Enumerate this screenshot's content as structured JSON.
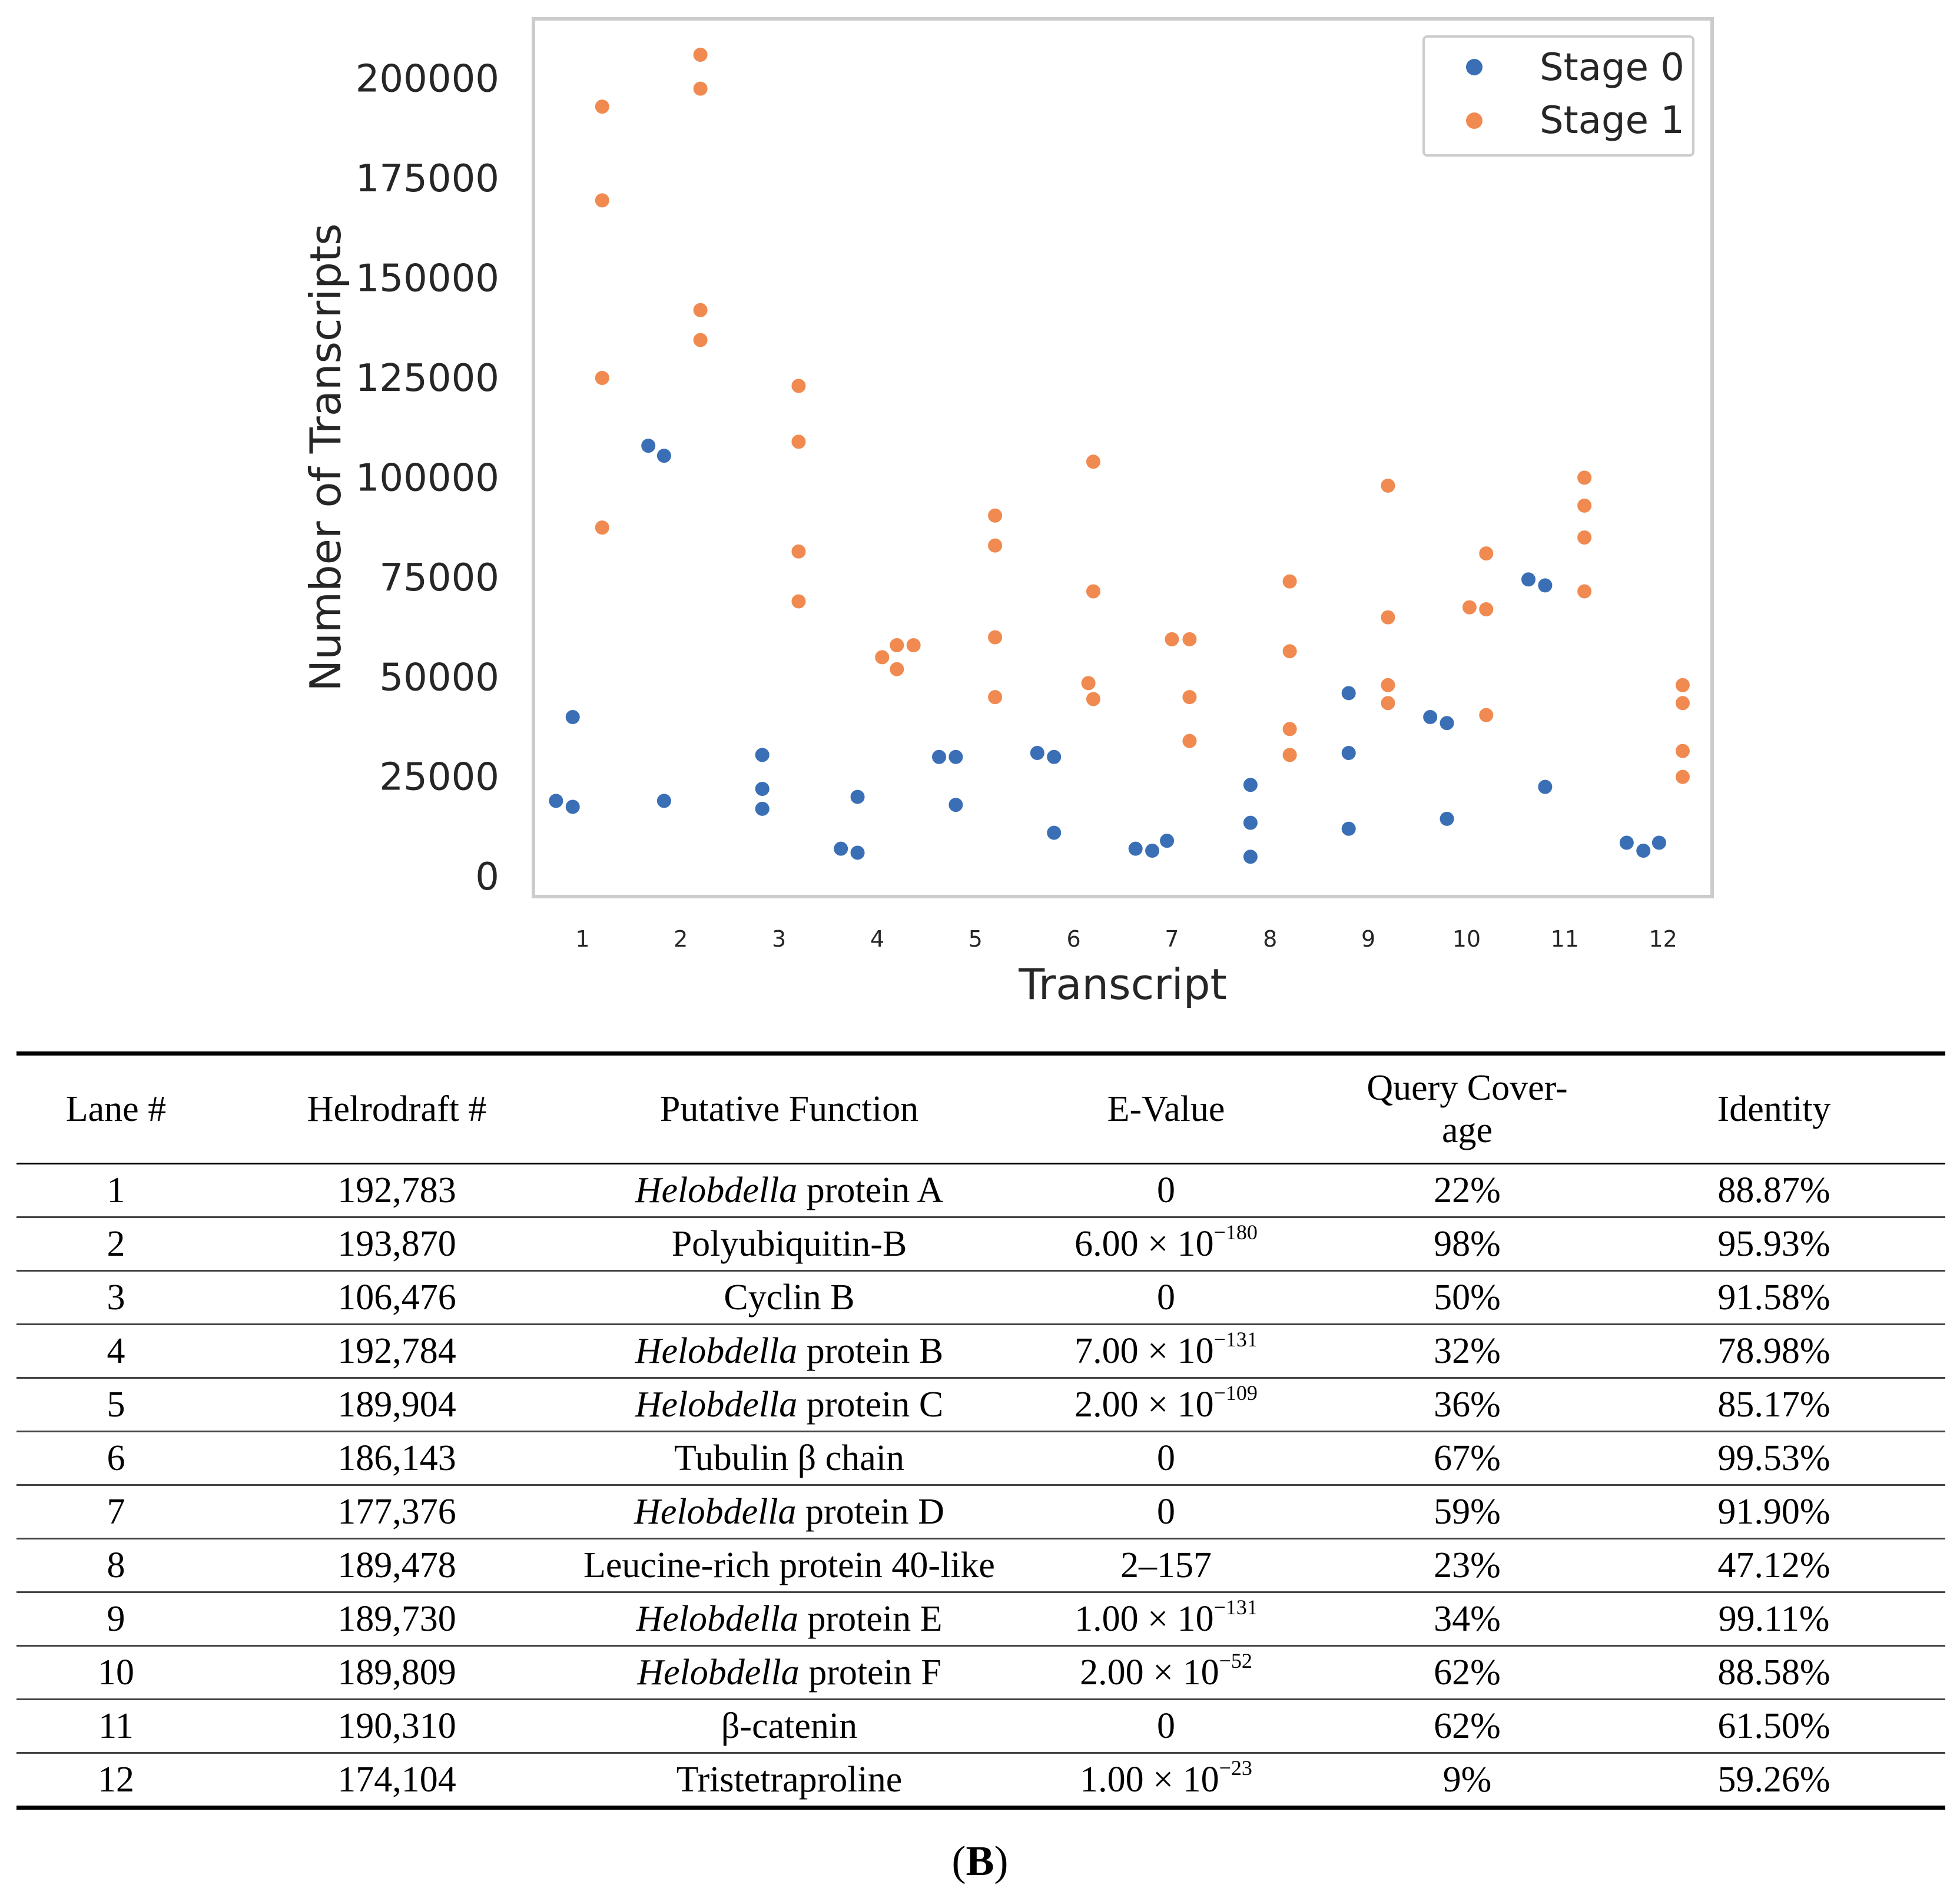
{
  "chart_data": {
    "type": "scatter",
    "xlabel": "Transcript",
    "ylabel": "Number of Transcripts",
    "ylim": [
      -5000,
      215000
    ],
    "xlim": [
      0.5,
      12.5
    ],
    "y_ticks": [
      0,
      25000,
      50000,
      75000,
      100000,
      125000,
      150000,
      175000,
      200000
    ],
    "y_tick_labels": [
      "0",
      "25000",
      "50000",
      "75000",
      "100000",
      "125000",
      "150000",
      "175000",
      "200000"
    ],
    "x_ticks": [
      1,
      2,
      3,
      4,
      5,
      6,
      7,
      8,
      9,
      10,
      11,
      12
    ],
    "x_tick_labels": [
      "1",
      "2",
      "3",
      "4",
      "5",
      "6",
      "7",
      "8",
      "9",
      "10",
      "11",
      "12"
    ],
    "grid": false,
    "legend_position": "top-right",
    "series": [
      {
        "name": "Stage 0",
        "color": "#3a6fb5",
        "points": [
          {
            "x": 0.73,
            "y": 19000
          },
          {
            "x": 0.9,
            "y": 17500
          },
          {
            "x": 0.9,
            "y": 40000
          },
          {
            "x": 1.67,
            "y": 108000
          },
          {
            "x": 1.83,
            "y": 105500
          },
          {
            "x": 1.83,
            "y": 19000
          },
          {
            "x": 2.83,
            "y": 30500
          },
          {
            "x": 2.83,
            "y": 22000
          },
          {
            "x": 2.83,
            "y": 17000
          },
          {
            "x": 3.63,
            "y": 7000
          },
          {
            "x": 3.8,
            "y": 20000
          },
          {
            "x": 3.8,
            "y": 6000
          },
          {
            "x": 4.63,
            "y": 30000
          },
          {
            "x": 4.8,
            "y": 30000
          },
          {
            "x": 4.8,
            "y": 18000
          },
          {
            "x": 5.63,
            "y": 31000
          },
          {
            "x": 5.8,
            "y": 30000
          },
          {
            "x": 5.8,
            "y": 11000
          },
          {
            "x": 6.63,
            "y": 7000
          },
          {
            "x": 6.8,
            "y": 6500
          },
          {
            "x": 6.95,
            "y": 9000
          },
          {
            "x": 7.8,
            "y": 23000
          },
          {
            "x": 7.8,
            "y": 13500
          },
          {
            "x": 7.8,
            "y": 5000
          },
          {
            "x": 8.8,
            "y": 46000
          },
          {
            "x": 8.8,
            "y": 31000
          },
          {
            "x": 8.8,
            "y": 12000
          },
          {
            "x": 9.63,
            "y": 40000
          },
          {
            "x": 9.8,
            "y": 38500
          },
          {
            "x": 9.8,
            "y": 14500
          },
          {
            "x": 10.63,
            "y": 74500
          },
          {
            "x": 10.8,
            "y": 73000
          },
          {
            "x": 10.8,
            "y": 22500
          },
          {
            "x": 11.63,
            "y": 8500
          },
          {
            "x": 11.8,
            "y": 6500
          },
          {
            "x": 11.96,
            "y": 8500
          }
        ]
      },
      {
        "name": "Stage 1",
        "color": "#f08a50",
        "points": [
          {
            "x": 1.2,
            "y": 193000
          },
          {
            "x": 1.2,
            "y": 169500
          },
          {
            "x": 1.2,
            "y": 125000
          },
          {
            "x": 1.2,
            "y": 87500
          },
          {
            "x": 2.2,
            "y": 206000
          },
          {
            "x": 2.2,
            "y": 197500
          },
          {
            "x": 2.2,
            "y": 142000
          },
          {
            "x": 2.2,
            "y": 134500
          },
          {
            "x": 3.2,
            "y": 123000
          },
          {
            "x": 3.2,
            "y": 109000
          },
          {
            "x": 3.2,
            "y": 81500
          },
          {
            "x": 3.2,
            "y": 69000
          },
          {
            "x": 4.05,
            "y": 55000
          },
          {
            "x": 4.2,
            "y": 58000
          },
          {
            "x": 4.37,
            "y": 58000
          },
          {
            "x": 4.2,
            "y": 52000
          },
          {
            "x": 5.2,
            "y": 90500
          },
          {
            "x": 5.2,
            "y": 83000
          },
          {
            "x": 5.2,
            "y": 60000
          },
          {
            "x": 5.2,
            "y": 45000
          },
          {
            "x": 6.2,
            "y": 104000
          },
          {
            "x": 6.2,
            "y": 71500
          },
          {
            "x": 6.15,
            "y": 48500
          },
          {
            "x": 6.2,
            "y": 44500
          },
          {
            "x": 7.0,
            "y": 59500
          },
          {
            "x": 7.18,
            "y": 59500
          },
          {
            "x": 7.18,
            "y": 45000
          },
          {
            "x": 7.18,
            "y": 34000
          },
          {
            "x": 8.2,
            "y": 74000
          },
          {
            "x": 8.2,
            "y": 56500
          },
          {
            "x": 8.2,
            "y": 37000
          },
          {
            "x": 8.2,
            "y": 30500
          },
          {
            "x": 9.2,
            "y": 98000
          },
          {
            "x": 9.2,
            "y": 65000
          },
          {
            "x": 9.2,
            "y": 48000
          },
          {
            "x": 9.2,
            "y": 43500
          },
          {
            "x": 10.03,
            "y": 67500
          },
          {
            "x": 10.2,
            "y": 81000
          },
          {
            "x": 10.2,
            "y": 67000
          },
          {
            "x": 10.2,
            "y": 40500
          },
          {
            "x": 11.2,
            "y": 100000
          },
          {
            "x": 11.2,
            "y": 93000
          },
          {
            "x": 11.2,
            "y": 85000
          },
          {
            "x": 11.2,
            "y": 71500
          },
          {
            "x": 12.2,
            "y": 48000
          },
          {
            "x": 12.2,
            "y": 43500
          },
          {
            "x": 12.2,
            "y": 31500
          },
          {
            "x": 12.2,
            "y": 25000
          }
        ]
      }
    ]
  },
  "table": {
    "headers": {
      "lane": "Lane #",
      "helrodraft": "Helrodraft #",
      "function": "Putative Function",
      "evalue": "E-Value",
      "coverage_line1": "Query Cover-",
      "coverage_line2": "age",
      "identity": "Identity"
    },
    "rows": [
      {
        "lane": "1",
        "helrodraft": "192,783",
        "function_italic": "Helobdella",
        "function_rest": " protein A",
        "evalue_base": "0",
        "evalue_exp": "",
        "coverage": "22%",
        "identity": "88.87%"
      },
      {
        "lane": "2",
        "helrodraft": "193,870",
        "function_italic": "",
        "function_rest": "Polyubiquitin-B",
        "evalue_base": "6.00 × 10",
        "evalue_exp": "−180",
        "coverage": "98%",
        "identity": "95.93%"
      },
      {
        "lane": "3",
        "helrodraft": "106,476",
        "function_italic": "",
        "function_rest": "Cyclin B",
        "evalue_base": "0",
        "evalue_exp": "",
        "coverage": "50%",
        "identity": "91.58%"
      },
      {
        "lane": "4",
        "helrodraft": "192,784",
        "function_italic": "Helobdella",
        "function_rest": " protein B",
        "evalue_base": "7.00 × 10",
        "evalue_exp": "−131",
        "coverage": "32%",
        "identity": "78.98%"
      },
      {
        "lane": "5",
        "helrodraft": "189,904",
        "function_italic": "Helobdella",
        "function_rest": " protein C",
        "evalue_base": "2.00 × 10",
        "evalue_exp": "−109",
        "coverage": "36%",
        "identity": "85.17%"
      },
      {
        "lane": "6",
        "helrodraft": "186,143",
        "function_italic": "",
        "function_rest": "Tubulin β chain",
        "evalue_base": "0",
        "evalue_exp": "",
        "coverage": "67%",
        "identity": "99.53%"
      },
      {
        "lane": "7",
        "helrodraft": "177,376",
        "function_italic": "Helobdella",
        "function_rest": " protein D",
        "evalue_base": "0",
        "evalue_exp": "",
        "coverage": "59%",
        "identity": "91.90%"
      },
      {
        "lane": "8",
        "helrodraft": "189,478",
        "function_italic": "",
        "function_rest": "Leucine-rich protein 40-like",
        "evalue_base": "2–157",
        "evalue_exp": "",
        "coverage": "23%",
        "identity": "47.12%"
      },
      {
        "lane": "9",
        "helrodraft": "189,730",
        "function_italic": "Helobdella",
        "function_rest": " protein E",
        "evalue_base": "1.00 × 10",
        "evalue_exp": "−131",
        "coverage": "34%",
        "identity": "99.11%"
      },
      {
        "lane": "10",
        "helrodraft": "189,809",
        "function_italic": "Helobdella",
        "function_rest": " protein F",
        "evalue_base": "2.00 × 10",
        "evalue_exp": "−52",
        "coverage": "62%",
        "identity": "88.58%"
      },
      {
        "lane": "11",
        "helrodraft": "190,310",
        "function_italic": "",
        "function_rest": "β-catenin",
        "evalue_base": "0",
        "evalue_exp": "",
        "coverage": "62%",
        "identity": "61.50%"
      },
      {
        "lane": "12",
        "helrodraft": "174,104",
        "function_italic": "",
        "function_rest": "Tristetraproline",
        "evalue_base": "1.00 × 10",
        "evalue_exp": "−23",
        "coverage": "9%",
        "identity": "59.26%"
      }
    ]
  },
  "caption": {
    "open": "(",
    "label": "B",
    "close": ")"
  }
}
